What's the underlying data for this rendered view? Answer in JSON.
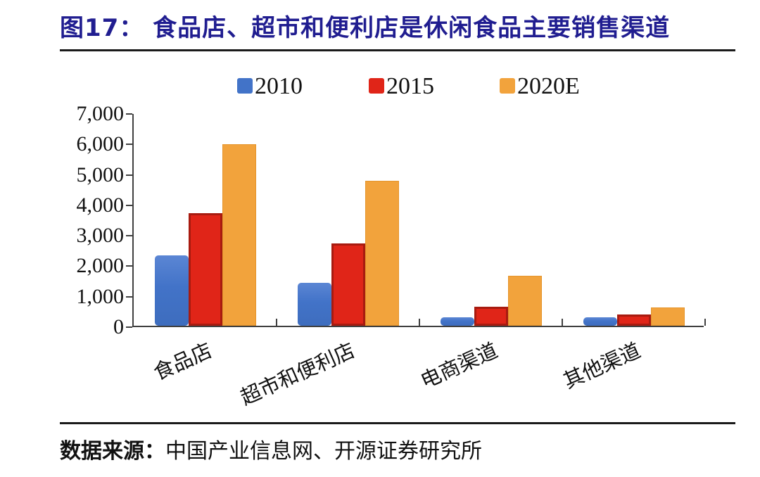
{
  "figure": {
    "title": "图17：  食品店、超市和便利店是休闲食品主要销售渠道",
    "title_color": "#201d90",
    "source_prefix": "数据来源：",
    "source_body": "中国产业信息网、开源证券研究所"
  },
  "chart_data": {
    "type": "bar",
    "title": "食品店、超市和便利店是休闲食品主要销售渠道",
    "categories": [
      "食品店",
      "超市和便利店",
      "电商渠道",
      "其他渠道"
    ],
    "series": [
      {
        "name": "2010",
        "color": "#4273c8",
        "values": [
          2300,
          1400,
          280,
          280
        ]
      },
      {
        "name": "2015",
        "color": "#e02518",
        "values": [
          3700,
          2700,
          620,
          380
        ]
      },
      {
        "name": "2020E",
        "color": "#f2a33c",
        "values": [
          5950,
          4750,
          1650,
          600
        ]
      }
    ],
    "xlabel": "",
    "ylabel": "",
    "ylim": [
      0,
      7000
    ],
    "ytick_step": 1000,
    "ytick_labels": [
      "0",
      "1,000",
      "2,000",
      "3,000",
      "4,000",
      "5,000",
      "6,000",
      "7,000"
    ],
    "grid": false,
    "legend_position": "top",
    "axis_color": "#404040"
  }
}
